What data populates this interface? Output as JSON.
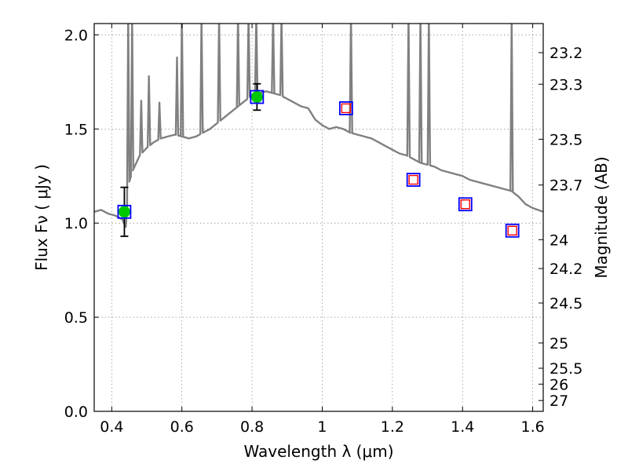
{
  "chart_data": {
    "type": "scatter",
    "xlabel": "Wavelength  λ (μm)",
    "ylabel": "Flux  Fν  ( μJy )",
    "y2label": "Magnitude (AB)",
    "xlim": [
      0.35,
      1.63
    ],
    "ylim": [
      0.0,
      2.06
    ],
    "grid": true,
    "x_ticks": [
      {
        "value": 0.4,
        "label": "0.4"
      },
      {
        "value": 0.6,
        "label": "0.6"
      },
      {
        "value": 0.8,
        "label": "0.8"
      },
      {
        "value": 1.0,
        "label": "1"
      },
      {
        "value": 1.2,
        "label": "1.2"
      },
      {
        "value": 1.4,
        "label": "1.4"
      },
      {
        "value": 1.6,
        "label": "1.6"
      }
    ],
    "y_ticks": [
      {
        "value": 0.0,
        "label": "0.0"
      },
      {
        "value": 0.5,
        "label": "0.5"
      },
      {
        "value": 1.0,
        "label": "1.0"
      },
      {
        "value": 1.5,
        "label": "1.5"
      },
      {
        "value": 2.0,
        "label": "2.0"
      }
    ],
    "magnitude_ticks": [
      {
        "value": 23.2,
        "label": "23.2"
      },
      {
        "value": 23.3,
        "label": "23.3"
      },
      {
        "value": 23.5,
        "label": "23.5"
      },
      {
        "value": 23.7,
        "label": "23.7"
      },
      {
        "value": 24.0,
        "label": "24"
      },
      {
        "value": 24.2,
        "label": "24.2"
      },
      {
        "value": 24.5,
        "label": "24.5"
      },
      {
        "value": 25.0,
        "label": "25"
      },
      {
        "value": 25.5,
        "label": "25.5"
      },
      {
        "value": 26.0,
        "label": "26"
      },
      {
        "value": 27.0,
        "label": "27"
      }
    ],
    "spectrum": {
      "color": "#808080",
      "continuum": [
        [
          0.35,
          1.06
        ],
        [
          0.37,
          1.07
        ],
        [
          0.39,
          1.05
        ],
        [
          0.41,
          1.04
        ],
        [
          0.43,
          1.02
        ],
        [
          0.44,
          0.98
        ],
        [
          0.45,
          1.22
        ],
        [
          0.46,
          1.28
        ],
        [
          0.48,
          1.36
        ],
        [
          0.5,
          1.4
        ],
        [
          0.52,
          1.43
        ],
        [
          0.54,
          1.45
        ],
        [
          0.56,
          1.46
        ],
        [
          0.58,
          1.47
        ],
        [
          0.6,
          1.46
        ],
        [
          0.62,
          1.45
        ],
        [
          0.64,
          1.46
        ],
        [
          0.66,
          1.48
        ],
        [
          0.68,
          1.5
        ],
        [
          0.7,
          1.53
        ],
        [
          0.72,
          1.56
        ],
        [
          0.74,
          1.59
        ],
        [
          0.76,
          1.62
        ],
        [
          0.78,
          1.65
        ],
        [
          0.8,
          1.68
        ],
        [
          0.82,
          1.69
        ],
        [
          0.84,
          1.7
        ],
        [
          0.86,
          1.69
        ],
        [
          0.88,
          1.68
        ],
        [
          0.9,
          1.66
        ],
        [
          0.92,
          1.64
        ],
        [
          0.94,
          1.62
        ],
        [
          0.96,
          1.61
        ],
        [
          0.98,
          1.55
        ],
        [
          1.0,
          1.52
        ],
        [
          1.02,
          1.5
        ],
        [
          1.04,
          1.51
        ],
        [
          1.06,
          1.5
        ],
        [
          1.08,
          1.48
        ],
        [
          1.1,
          1.47
        ],
        [
          1.12,
          1.46
        ],
        [
          1.14,
          1.45
        ],
        [
          1.16,
          1.43
        ],
        [
          1.18,
          1.41
        ],
        [
          1.2,
          1.39
        ],
        [
          1.22,
          1.37
        ],
        [
          1.24,
          1.36
        ],
        [
          1.26,
          1.34
        ],
        [
          1.28,
          1.32
        ],
        [
          1.3,
          1.31
        ],
        [
          1.32,
          1.3
        ],
        [
          1.34,
          1.28
        ],
        [
          1.36,
          1.27
        ],
        [
          1.38,
          1.26
        ],
        [
          1.4,
          1.25
        ],
        [
          1.42,
          1.23
        ],
        [
          1.44,
          1.22
        ],
        [
          1.46,
          1.21
        ],
        [
          1.48,
          1.2
        ],
        [
          1.5,
          1.19
        ],
        [
          1.52,
          1.18
        ],
        [
          1.54,
          1.17
        ],
        [
          1.56,
          1.14
        ],
        [
          1.58,
          1.1
        ],
        [
          1.6,
          1.08
        ],
        [
          1.63,
          1.06
        ]
      ],
      "emission_lines": [
        [
          0.447,
          2.1
        ],
        [
          0.458,
          2.1
        ],
        [
          0.484,
          1.65
        ],
        [
          0.506,
          1.78
        ],
        [
          0.536,
          1.64
        ],
        [
          0.586,
          1.88
        ],
        [
          0.6,
          2.1
        ],
        [
          0.656,
          2.1
        ],
        [
          0.706,
          2.1
        ],
        [
          0.76,
          2.1
        ],
        [
          0.79,
          2.1
        ],
        [
          0.812,
          2.1
        ],
        [
          0.86,
          2.1
        ],
        [
          0.884,
          2.1
        ],
        [
          1.082,
          2.1
        ],
        [
          1.246,
          2.1
        ],
        [
          1.28,
          2.1
        ],
        [
          1.304,
          2.1
        ],
        [
          1.54,
          2.1
        ]
      ]
    },
    "series": [
      {
        "marker": "circle",
        "color": "#00c800",
        "points": [
          {
            "x": 0.436,
            "y": 1.06,
            "err": 0.13
          },
          {
            "x": 0.814,
            "y": 1.67,
            "err": 0.07
          }
        ]
      },
      {
        "marker": "open-square",
        "color": "#0000ff",
        "points": [
          {
            "x": 0.436,
            "y": 1.06
          },
          {
            "x": 0.814,
            "y": 1.67
          },
          {
            "x": 1.068,
            "y": 1.61
          },
          {
            "x": 1.26,
            "y": 1.23
          },
          {
            "x": 1.408,
            "y": 1.1
          },
          {
            "x": 1.542,
            "y": 0.96
          }
        ]
      },
      {
        "marker": "open-square-small",
        "color": "#ff0000",
        "points": [
          {
            "x": 1.068,
            "y": 1.61
          },
          {
            "x": 1.26,
            "y": 1.23
          },
          {
            "x": 1.408,
            "y": 1.1
          },
          {
            "x": 1.542,
            "y": 0.96
          }
        ]
      }
    ]
  }
}
